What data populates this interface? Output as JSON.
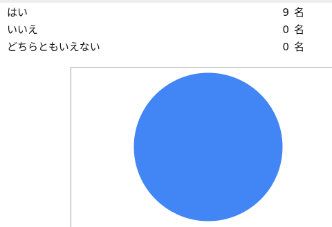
{
  "results": {
    "rows": [
      {
        "label": "はい",
        "count": "9",
        "unit": "名"
      },
      {
        "label": "いいえ",
        "count": "0",
        "unit": "名"
      },
      {
        "label": "どちらともいえない",
        "count": "0",
        "unit": "名"
      }
    ]
  },
  "chart_data": {
    "type": "pie",
    "categories": [
      "はい",
      "いいえ",
      "どちらともいえない"
    ],
    "values": [
      9,
      0,
      0
    ],
    "colors": [
      "#4285f4",
      "#db4437",
      "#f4b400"
    ],
    "title": ""
  }
}
